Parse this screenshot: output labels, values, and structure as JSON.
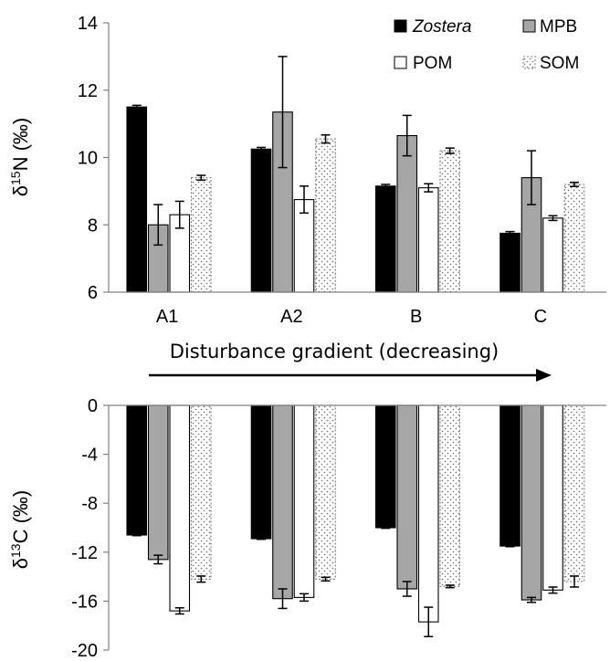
{
  "chart_data": [
    {
      "type": "bar",
      "ylabel_main": "δ",
      "ylabel_sup": "15",
      "ylabel_rest": "N (‰)",
      "ylim": [
        6,
        14
      ],
      "yticks": [
        6,
        8,
        10,
        12,
        14
      ],
      "categories": [
        "A1",
        "A2",
        "B",
        "C"
      ],
      "series": [
        {
          "name": "Zostera",
          "italic": true,
          "fill": "#000000",
          "pattern": "solid",
          "values": [
            11.5,
            10.25,
            9.15,
            7.75
          ],
          "errors": [
            0.05,
            0.05,
            0.05,
            0.05
          ]
        },
        {
          "name": "MPB",
          "italic": false,
          "fill": "#a6a6a6",
          "pattern": "solid",
          "values": [
            8.0,
            11.35,
            10.65,
            9.4
          ],
          "errors": [
            0.6,
            1.65,
            0.6,
            0.8
          ]
        },
        {
          "name": "POM",
          "italic": false,
          "fill": "#ffffff",
          "pattern": "solid",
          "values": [
            8.3,
            8.75,
            9.1,
            8.2
          ],
          "errors": [
            0.4,
            0.4,
            0.12,
            0.07
          ]
        },
        {
          "name": "SOM",
          "italic": false,
          "fill": "#ffffff",
          "pattern": "dots",
          "values": [
            9.4,
            10.55,
            10.2,
            9.2
          ],
          "errors": [
            0.07,
            0.12,
            0.08,
            0.06
          ]
        }
      ],
      "legend_position": "top-right",
      "grid": false
    },
    {
      "type": "bar",
      "ylabel_main": "δ",
      "ylabel_sup": "13",
      "ylabel_rest": "C (‰)",
      "ylim": [
        -20,
        0
      ],
      "yticks": [
        0,
        -4,
        -8,
        -12,
        -16,
        -20
      ],
      "categories": [
        "A1",
        "A2",
        "B",
        "C"
      ],
      "category_labels_shown": false,
      "series": [
        {
          "name": "Zostera",
          "values": [
            -10.6,
            -10.9,
            -10.0,
            -11.5
          ],
          "errors": [
            0.05,
            0.05,
            0.05,
            0.05
          ]
        },
        {
          "name": "MPB",
          "values": [
            -12.6,
            -15.8,
            -15.0,
            -15.9
          ],
          "errors": [
            0.35,
            0.8,
            0.6,
            0.2
          ]
        },
        {
          "name": "POM",
          "values": [
            -16.8,
            -15.7,
            -17.7,
            -15.1
          ],
          "errors": [
            0.25,
            0.3,
            1.2,
            0.25
          ]
        },
        {
          "name": "SOM",
          "values": [
            -14.2,
            -14.2,
            -14.8,
            -14.4
          ],
          "errors": [
            0.25,
            0.15,
            0.1,
            0.45
          ]
        }
      ],
      "grid": false
    }
  ],
  "gradient_label": "Disturbance gradient (decreasing)"
}
